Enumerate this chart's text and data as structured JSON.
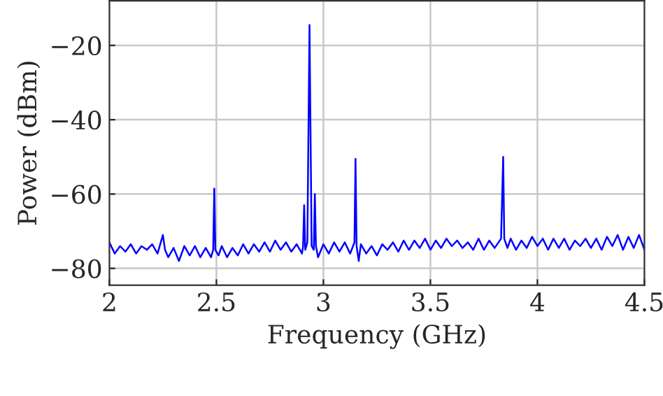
{
  "chart_data": {
    "type": "line",
    "xlabel": "Frequency (GHz)",
    "ylabel": "Power (dBm)",
    "xlim": [
      2,
      4.5
    ],
    "ylim": [
      -84.5,
      -8
    ],
    "xticks": [
      2,
      2.5,
      3,
      3.5,
      4,
      4.5
    ],
    "yticks": [
      {
        "value": -80,
        "label": "−80"
      },
      {
        "value": -60,
        "label": "−60"
      },
      {
        "value": -40,
        "label": "−40"
      },
      {
        "value": -20,
        "label": "−20"
      }
    ],
    "grid": true,
    "marker": "none",
    "line_style": "solid",
    "series": [
      {
        "color": "#0000ff",
        "x": [
          2.0,
          2.025,
          2.05,
          2.075,
          2.1,
          2.125,
          2.15,
          2.175,
          2.2,
          2.225,
          2.25,
          2.26,
          2.275,
          2.3,
          2.325,
          2.35,
          2.375,
          2.4,
          2.425,
          2.45,
          2.475,
          2.485,
          2.49,
          2.495,
          2.51,
          2.525,
          2.55,
          2.575,
          2.6,
          2.625,
          2.65,
          2.675,
          2.7,
          2.725,
          2.75,
          2.775,
          2.8,
          2.825,
          2.85,
          2.875,
          2.9,
          2.905,
          2.91,
          2.915,
          2.925,
          2.935,
          2.945,
          2.955,
          2.96,
          2.965,
          2.975,
          3.0,
          3.025,
          3.05,
          3.075,
          3.1,
          3.125,
          3.145,
          3.15,
          3.155,
          3.165,
          3.175,
          3.2,
          3.225,
          3.25,
          3.275,
          3.3,
          3.325,
          3.35,
          3.375,
          3.4,
          3.425,
          3.45,
          3.475,
          3.5,
          3.525,
          3.55,
          3.575,
          3.6,
          3.625,
          3.65,
          3.675,
          3.7,
          3.725,
          3.75,
          3.775,
          3.8,
          3.83,
          3.84,
          3.845,
          3.86,
          3.875,
          3.9,
          3.925,
          3.95,
          3.975,
          4.0,
          4.025,
          4.05,
          4.075,
          4.1,
          4.125,
          4.15,
          4.175,
          4.2,
          4.225,
          4.25,
          4.275,
          4.3,
          4.325,
          4.35,
          4.375,
          4.4,
          4.425,
          4.45,
          4.475,
          4.5
        ],
        "values": [
          -73,
          -76,
          -74,
          -75.5,
          -73.5,
          -76,
          -74,
          -75,
          -73.5,
          -76,
          -71,
          -75,
          -77,
          -74.5,
          -78,
          -74,
          -76.5,
          -74,
          -77,
          -74.5,
          -77,
          -75,
          -58.5,
          -75,
          -76.5,
          -74,
          -77,
          -74.5,
          -76.5,
          -73.5,
          -76,
          -73.5,
          -75.5,
          -73,
          -75.5,
          -72.5,
          -75,
          -73,
          -75.5,
          -73.5,
          -76,
          -74,
          -63,
          -75,
          -73,
          -14.5,
          -74,
          -75,
          -60,
          -74,
          -77,
          -73.5,
          -76,
          -73,
          -75.5,
          -73,
          -76,
          -73,
          -50.5,
          -74,
          -78,
          -73.5,
          -76,
          -74,
          -76.5,
          -73.5,
          -75,
          -73,
          -75.5,
          -72.5,
          -75,
          -72.5,
          -74.5,
          -72,
          -75,
          -72.5,
          -74.5,
          -72,
          -74,
          -72.5,
          -74.5,
          -73,
          -75,
          -72,
          -75,
          -72.5,
          -74.5,
          -72,
          -50,
          -72,
          -74.5,
          -72,
          -75,
          -72.5,
          -74.5,
          -71.5,
          -74,
          -72,
          -75,
          -72,
          -74.5,
          -72,
          -75,
          -72.5,
          -74,
          -72,
          -74.5,
          -72,
          -75,
          -71.5,
          -74,
          -71,
          -75,
          -71.5,
          -74.5,
          -71,
          -75
        ]
      }
    ]
  }
}
